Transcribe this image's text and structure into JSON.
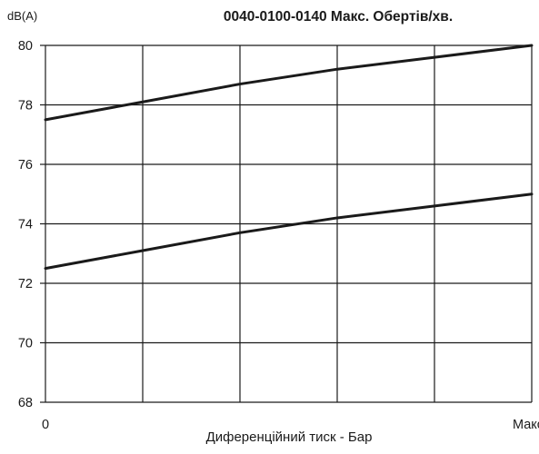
{
  "chart_data": {
    "type": "line",
    "title": "0040-0100-0140 Макс. Обертів/хв.",
    "ylabel": "dB(A)",
    "xlabel": "Диференційний тиск - Бар",
    "x_tick_labels": [
      "0",
      "Макс."
    ],
    "ylim": [
      68,
      80
    ],
    "y_ticks": [
      68,
      70,
      72,
      74,
      76,
      78,
      80
    ],
    "xlim": [
      0,
      1
    ],
    "grid": true,
    "x": [
      0,
      0.2,
      0.4,
      0.6,
      0.8,
      1.0
    ],
    "series": [
      {
        "values": [
          77.5,
          78.1,
          78.7,
          79.2,
          79.6,
          80.0
        ]
      },
      {
        "values": [
          72.5,
          73.1,
          73.7,
          74.2,
          74.6,
          75.0
        ]
      }
    ],
    "colors": {
      "line": "#1a1a1a",
      "grid": "#1a1a1a",
      "text": "#1a1a1a"
    }
  }
}
